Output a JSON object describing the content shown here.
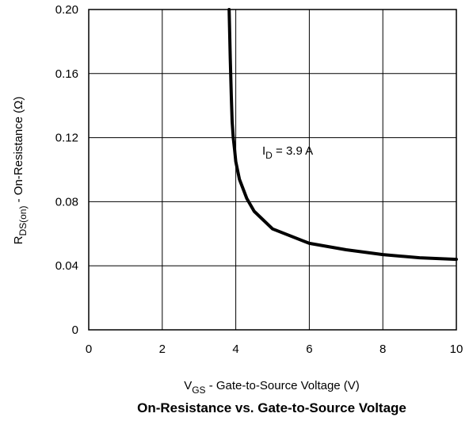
{
  "chart_data": {
    "type": "line",
    "title": "On-Resistance vs. Gate-to-Source Voltage",
    "xlabel": {
      "main": "V",
      "sub": "GS",
      "rest": " -  Gate-to-Source Voltage (V)"
    },
    "ylabel": {
      "main": "R",
      "sub": "DS(on)",
      "rest": " - On-Resistance (Ω)"
    },
    "xlim": [
      0,
      10
    ],
    "ylim": [
      0,
      0.2
    ],
    "x_ticks": [
      "0",
      "2",
      "4",
      "6",
      "8",
      "10"
    ],
    "y_ticks": [
      "0",
      "0.04",
      "0.08",
      "0.12",
      "0.16",
      "0.20"
    ],
    "grid": true,
    "annotation": {
      "main": "I",
      "sub": "D",
      "rest": " = 3.9 A"
    },
    "series": [
      {
        "x": [
          3.82,
          3.85,
          3.88,
          3.9,
          3.93,
          3.97,
          4.0,
          4.1,
          4.3,
          4.5,
          5.0,
          6.0,
          7.0,
          8.0,
          9.0,
          10.0
        ],
        "y": [
          0.2,
          0.17,
          0.145,
          0.13,
          0.12,
          0.112,
          0.105,
          0.094,
          0.082,
          0.074,
          0.063,
          0.054,
          0.05,
          0.047,
          0.045,
          0.044
        ]
      }
    ]
  }
}
